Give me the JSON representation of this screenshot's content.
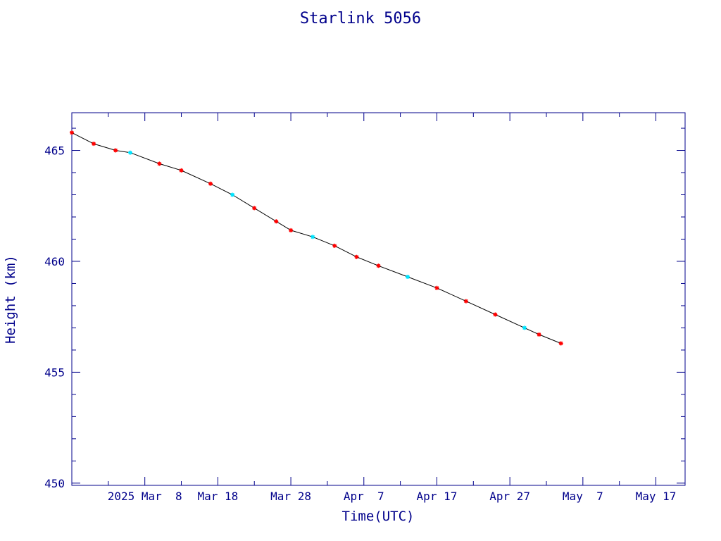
{
  "chart_data": {
    "type": "scatter",
    "title": "Starlink 5056",
    "xlabel": "Time(UTC)",
    "ylabel": "Height (km)",
    "x_range": [
      "2025-02-26",
      "2025-05-21"
    ],
    "ylim": [
      449.9,
      466.7
    ],
    "x_ticks": [
      {
        "date": "2025-03-08",
        "label": "2025 Mar  8"
      },
      {
        "date": "2025-03-18",
        "label": "Mar 18"
      },
      {
        "date": "2025-03-28",
        "label": "Mar 28"
      },
      {
        "date": "2025-04-07",
        "label": "Apr  7"
      },
      {
        "date": "2025-04-17",
        "label": "Apr 17"
      },
      {
        "date": "2025-04-27",
        "label": "Apr 27"
      },
      {
        "date": "2025-05-07",
        "label": "May  7"
      },
      {
        "date": "2025-05-17",
        "label": "May 17"
      }
    ],
    "y_ticks": [
      450,
      455,
      460,
      465
    ],
    "grid": false,
    "series": [
      {
        "marker": "star",
        "line_color": "#000000",
        "marker_colors": [
          "#ff0000",
          "#00e5ff"
        ],
        "points": [
          {
            "x": "2025-02-26",
            "y": 465.8
          },
          {
            "x": "2025-03-01",
            "y": 465.3
          },
          {
            "x": "2025-03-04",
            "y": 465.0
          },
          {
            "x": "2025-03-06",
            "y": 464.9
          },
          {
            "x": "2025-03-10",
            "y": 464.4
          },
          {
            "x": "2025-03-13",
            "y": 464.1
          },
          {
            "x": "2025-03-17",
            "y": 463.5
          },
          {
            "x": "2025-03-20",
            "y": 463.0
          },
          {
            "x": "2025-03-23",
            "y": 462.4
          },
          {
            "x": "2025-03-26",
            "y": 461.8
          },
          {
            "x": "2025-03-28",
            "y": 461.4
          },
          {
            "x": "2025-03-31",
            "y": 461.1
          },
          {
            "x": "2025-04-03",
            "y": 460.7
          },
          {
            "x": "2025-04-06",
            "y": 460.2
          },
          {
            "x": "2025-04-09",
            "y": 459.8
          },
          {
            "x": "2025-04-13",
            "y": 459.3
          },
          {
            "x": "2025-04-17",
            "y": 458.8
          },
          {
            "x": "2025-04-21",
            "y": 458.2
          },
          {
            "x": "2025-04-25",
            "y": 457.6
          },
          {
            "x": "2025-04-29",
            "y": 457.0
          },
          {
            "x": "2025-05-01",
            "y": 456.7
          },
          {
            "x": "2025-05-04",
            "y": 456.3
          }
        ]
      }
    ]
  }
}
